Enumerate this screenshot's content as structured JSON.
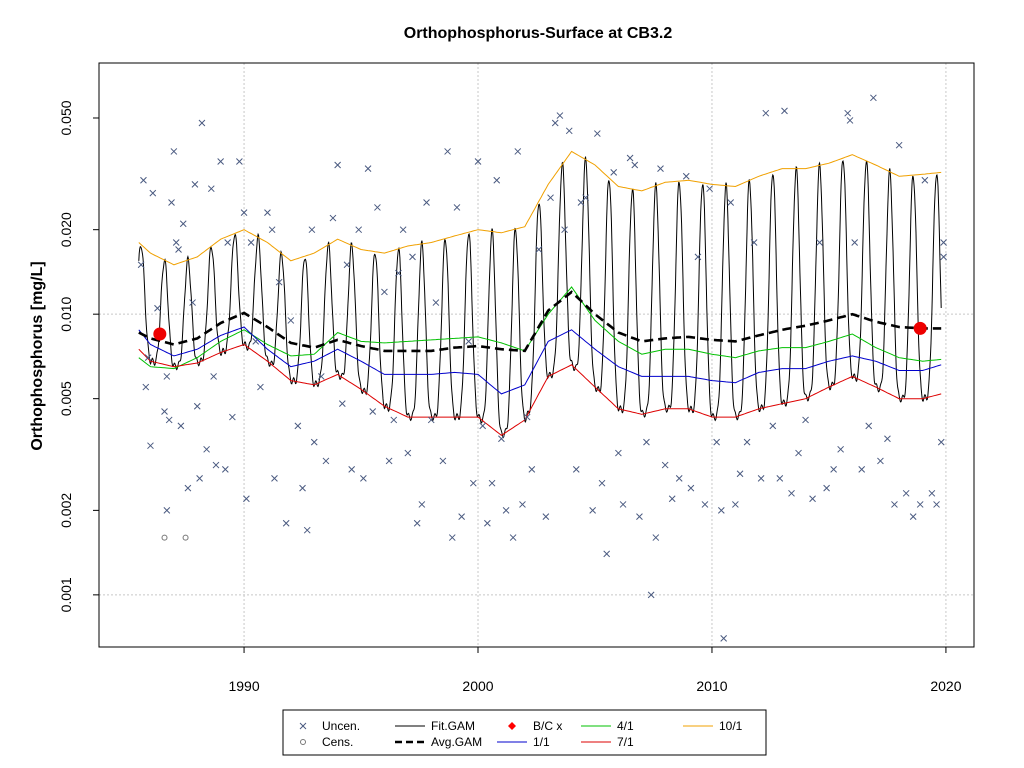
{
  "chart_data": {
    "type": "line",
    "title": "Orthophosphorus-Surface at CB3.2",
    "xlabel": "",
    "ylabel": "Orthophosphorus [mg/L]",
    "y_scale": "log",
    "xlim": [
      1983.8,
      2021.2
    ],
    "ylim": [
      0.000652,
      0.0785
    ],
    "x_ticks": [
      1990,
      2000,
      2010,
      2020
    ],
    "x_tick_labels": [
      "1990",
      "2000",
      "2010",
      "2020"
    ],
    "y_ticks": [
      0.001,
      0.002,
      0.005,
      0.01,
      0.02,
      0.05
    ],
    "y_tick_labels": [
      "0.001",
      "0.002",
      "0.005",
      "0.010",
      "0.020",
      "0.050"
    ],
    "grid": true,
    "legend_position": "bottom-outside",
    "legend": [
      {
        "label": "Uncen.",
        "kind": "cross",
        "color": "#4a5a80"
      },
      {
        "label": "Cens.",
        "kind": "circle",
        "color": "#777777"
      },
      {
        "label": "Fit.GAM",
        "kind": "line",
        "color": "#000000"
      },
      {
        "label": "Avg.GAM",
        "kind": "dashed",
        "color": "#000000"
      },
      {
        "label": "B/C x",
        "kind": "diamond",
        "color": "#ff0000"
      },
      {
        "label": "1/1",
        "kind": "line",
        "color": "#0000cc"
      },
      {
        "label": "4/1",
        "kind": "line",
        "color": "#00c000"
      },
      {
        "label": "7/1",
        "kind": "line",
        "color": "#dd0000"
      },
      {
        "label": "10/1",
        "kind": "line",
        "color": "#f0a000"
      }
    ],
    "baseline_x": [
      1985.5,
      1986,
      1987,
      1988,
      1989,
      1990,
      1991,
      1992,
      1993,
      1994,
      1995,
      1996,
      1997,
      1998,
      1999,
      2000,
      2001,
      2002,
      2003,
      2004,
      2005,
      2006,
      2007,
      2008,
      2009,
      2010,
      2011,
      2012,
      2013,
      2014,
      2015,
      2016,
      2017,
      2018,
      2019,
      2019.8
    ],
    "avg_gam": [
      0.0086,
      0.0082,
      0.0078,
      0.0082,
      0.0093,
      0.0101,
      0.009,
      0.0079,
      0.0076,
      0.0081,
      0.0077,
      0.0074,
      0.0074,
      0.0074,
      0.0076,
      0.0077,
      0.0075,
      0.0074,
      0.0103,
      0.012,
      0.01,
      0.0086,
      0.008,
      0.0082,
      0.0083,
      0.0081,
      0.008,
      0.0084,
      0.0088,
      0.0091,
      0.0095,
      0.01,
      0.0094,
      0.009,
      0.0089,
      0.0089
    ],
    "series": [
      {
        "name": "10/1",
        "color": "#f0a000",
        "values": [
          0.018,
          0.0165,
          0.015,
          0.016,
          0.0185,
          0.02,
          0.018,
          0.0155,
          0.0165,
          0.0185,
          0.017,
          0.0165,
          0.0175,
          0.018,
          0.019,
          0.02,
          0.0195,
          0.0205,
          0.029,
          0.038,
          0.034,
          0.0285,
          0.0275,
          0.0295,
          0.03,
          0.029,
          0.0285,
          0.031,
          0.033,
          0.033,
          0.0345,
          0.037,
          0.034,
          0.031,
          0.0315,
          0.032
        ]
      },
      {
        "name": "4/1",
        "color": "#00c000",
        "values": [
          0.007,
          0.0065,
          0.0064,
          0.007,
          0.008,
          0.0088,
          0.0078,
          0.0071,
          0.0072,
          0.0086,
          0.008,
          0.0079,
          0.008,
          0.0081,
          0.0082,
          0.0083,
          0.0079,
          0.0074,
          0.01,
          0.0125,
          0.0095,
          0.008,
          0.0072,
          0.0075,
          0.0075,
          0.0072,
          0.007,
          0.0074,
          0.0076,
          0.0076,
          0.008,
          0.0085,
          0.0076,
          0.007,
          0.0068,
          0.0069
        ]
      },
      {
        "name": "1/1",
        "color": "#0000cc",
        "values": [
          0.0088,
          0.0078,
          0.0071,
          0.0075,
          0.0084,
          0.009,
          0.0075,
          0.0065,
          0.0068,
          0.0075,
          0.0068,
          0.0061,
          0.0061,
          0.0061,
          0.0062,
          0.0061,
          0.0052,
          0.0056,
          0.008,
          0.0088,
          0.0075,
          0.0065,
          0.006,
          0.006,
          0.006,
          0.0058,
          0.0057,
          0.0062,
          0.0064,
          0.0064,
          0.0068,
          0.0071,
          0.0068,
          0.0063,
          0.0063,
          0.0066
        ]
      },
      {
        "name": "7/1",
        "color": "#dd0000",
        "values": [
          0.0075,
          0.0068,
          0.0065,
          0.0067,
          0.0073,
          0.0078,
          0.0068,
          0.0058,
          0.0056,
          0.0061,
          0.0054,
          0.0047,
          0.0043,
          0.0043,
          0.0043,
          0.0043,
          0.0037,
          0.0042,
          0.006,
          0.0066,
          0.0055,
          0.0046,
          0.0044,
          0.0046,
          0.0046,
          0.0043,
          0.0043,
          0.0046,
          0.0048,
          0.005,
          0.0055,
          0.006,
          0.0055,
          0.005,
          0.005,
          0.0052
        ]
      }
    ],
    "fit_gam": {
      "start": 1985.5,
      "end": 2019.8,
      "color": "#000000",
      "description_from_chart": "seasonal oscillation between 7/1 and 10/1 curves"
    },
    "bc_points": [
      {
        "x": 1986.4,
        "y": 0.0085
      },
      {
        "x": 2018.9,
        "y": 0.0089
      }
    ],
    "uncensored_points": [
      [
        1985.6,
        0.015
      ],
      [
        1985.7,
        0.03
      ],
      [
        1985.8,
        0.0055
      ],
      [
        1985.9,
        0.007
      ],
      [
        1986.0,
        0.0034
      ],
      [
        1986.1,
        0.027
      ],
      [
        1986.3,
        0.0105
      ],
      [
        1986.6,
        0.0045
      ],
      [
        1986.7,
        0.006
      ],
      [
        1986.7,
        0.002
      ],
      [
        1986.8,
        0.0042
      ],
      [
        1986.9,
        0.025
      ],
      [
        1987.0,
        0.038
      ],
      [
        1987.1,
        0.018
      ],
      [
        1987.2,
        0.017
      ],
      [
        1987.3,
        0.004
      ],
      [
        1987.4,
        0.021
      ],
      [
        1987.6,
        0.0024
      ],
      [
        1987.8,
        0.011
      ],
      [
        1987.9,
        0.029
      ],
      [
        1988.0,
        0.0047
      ],
      [
        1988.1,
        0.0026
      ],
      [
        1988.2,
        0.048
      ],
      [
        1988.4,
        0.0033
      ],
      [
        1988.6,
        0.028
      ],
      [
        1988.7,
        0.006
      ],
      [
        1988.8,
        0.0029
      ],
      [
        1989.0,
        0.035
      ],
      [
        1989.2,
        0.0028
      ],
      [
        1989.3,
        0.018
      ],
      [
        1989.5,
        0.0043
      ],
      [
        1989.8,
        0.035
      ],
      [
        1990.0,
        0.023
      ],
      [
        1990.1,
        0.0022
      ],
      [
        1990.3,
        0.018
      ],
      [
        1990.5,
        0.008
      ],
      [
        1990.7,
        0.0055
      ],
      [
        1991.0,
        0.023
      ],
      [
        1991.2,
        0.02
      ],
      [
        1991.3,
        0.0026
      ],
      [
        1991.5,
        0.013
      ],
      [
        1991.8,
        0.0018
      ],
      [
        1992.0,
        0.0095
      ],
      [
        1992.3,
        0.004
      ],
      [
        1992.5,
        0.0024
      ],
      [
        1992.7,
        0.0017
      ],
      [
        1992.9,
        0.02
      ],
      [
        1993.0,
        0.0035
      ],
      [
        1993.3,
        0.006
      ],
      [
        1993.5,
        0.003
      ],
      [
        1993.8,
        0.022
      ],
      [
        1994.0,
        0.034
      ],
      [
        1994.2,
        0.0048
      ],
      [
        1994.4,
        0.015
      ],
      [
        1994.6,
        0.0028
      ],
      [
        1994.9,
        0.02
      ],
      [
        1995.1,
        0.0026
      ],
      [
        1995.3,
        0.033
      ],
      [
        1995.5,
        0.0045
      ],
      [
        1995.7,
        0.024
      ],
      [
        1996.0,
        0.012
      ],
      [
        1996.2,
        0.003
      ],
      [
        1996.4,
        0.0042
      ],
      [
        1996.6,
        0.014
      ],
      [
        1996.8,
        0.02
      ],
      [
        1997.0,
        0.0032
      ],
      [
        1997.2,
        0.016
      ],
      [
        1997.4,
        0.0018
      ],
      [
        1997.6,
        0.0021
      ],
      [
        1997.8,
        0.025
      ],
      [
        1998.0,
        0.0042
      ],
      [
        1998.2,
        0.011
      ],
      [
        1998.5,
        0.003
      ],
      [
        1998.7,
        0.038
      ],
      [
        1998.9,
        0.0016
      ],
      [
        1999.1,
        0.024
      ],
      [
        1999.3,
        0.0019
      ],
      [
        1999.6,
        0.008
      ],
      [
        1999.8,
        0.0025
      ],
      [
        2000.0,
        0.035
      ],
      [
        2000.2,
        0.004
      ],
      [
        2000.4,
        0.0018
      ],
      [
        2000.6,
        0.0025
      ],
      [
        2000.8,
        0.03
      ],
      [
        2001.0,
        0.0036
      ],
      [
        2001.2,
        0.002
      ],
      [
        2001.5,
        0.0016
      ],
      [
        2001.7,
        0.038
      ],
      [
        2001.9,
        0.0021
      ],
      [
        2002.1,
        0.0043
      ],
      [
        2002.3,
        0.0028
      ],
      [
        2002.6,
        0.017
      ],
      [
        2002.9,
        0.0019
      ],
      [
        2003.1,
        0.026
      ],
      [
        2003.3,
        0.048
      ],
      [
        2003.5,
        0.051
      ],
      [
        2003.7,
        0.02
      ],
      [
        2003.9,
        0.045
      ],
      [
        2004.2,
        0.0028
      ],
      [
        2004.4,
        0.025
      ],
      [
        2004.6,
        0.026
      ],
      [
        2004.9,
        0.002
      ],
      [
        2005.1,
        0.044
      ],
      [
        2005.3,
        0.0025
      ],
      [
        2005.5,
        0.0014
      ],
      [
        2005.8,
        0.032
      ],
      [
        2006.0,
        0.0032
      ],
      [
        2006.2,
        0.0021
      ],
      [
        2006.5,
        0.036
      ],
      [
        2006.7,
        0.034
      ],
      [
        2006.9,
        0.0019
      ],
      [
        2007.2,
        0.0035
      ],
      [
        2007.4,
        0.001
      ],
      [
        2007.6,
        0.0016
      ],
      [
        2007.8,
        0.033
      ],
      [
        2008.0,
        0.0029
      ],
      [
        2008.3,
        0.0022
      ],
      [
        2008.6,
        0.0026
      ],
      [
        2008.9,
        0.031
      ],
      [
        2009.1,
        0.0024
      ],
      [
        2009.4,
        0.016
      ],
      [
        2009.7,
        0.0021
      ],
      [
        2009.9,
        0.028
      ],
      [
        2010.2,
        0.0035
      ],
      [
        2010.4,
        0.002
      ],
      [
        2010.5,
        0.0007
      ],
      [
        2010.8,
        0.025
      ],
      [
        2011.0,
        0.0021
      ],
      [
        2011.2,
        0.0027
      ],
      [
        2011.5,
        0.0035
      ],
      [
        2011.8,
        0.018
      ],
      [
        2012.1,
        0.0026
      ],
      [
        2012.3,
        0.052
      ],
      [
        2012.6,
        0.004
      ],
      [
        2012.9,
        0.0026
      ],
      [
        2013.1,
        0.053
      ],
      [
        2013.4,
        0.0023
      ],
      [
        2013.7,
        0.0032
      ],
      [
        2014.0,
        0.0042
      ],
      [
        2014.3,
        0.0022
      ],
      [
        2014.6,
        0.018
      ],
      [
        2014.9,
        0.0024
      ],
      [
        2015.2,
        0.0028
      ],
      [
        2015.5,
        0.0033
      ],
      [
        2015.8,
        0.052
      ],
      [
        2015.9,
        0.049
      ],
      [
        2016.1,
        0.018
      ],
      [
        2016.4,
        0.0028
      ],
      [
        2016.7,
        0.004
      ],
      [
        2016.9,
        0.059
      ],
      [
        2017.2,
        0.003
      ],
      [
        2017.5,
        0.0036
      ],
      [
        2017.8,
        0.0021
      ],
      [
        2018.0,
        0.04
      ],
      [
        2018.3,
        0.0023
      ],
      [
        2018.6,
        0.0019
      ],
      [
        2018.9,
        0.0021
      ],
      [
        2019.1,
        0.03
      ],
      [
        2019.4,
        0.0023
      ],
      [
        2019.6,
        0.0021
      ],
      [
        2019.8,
        0.0035
      ],
      [
        2019.9,
        0.018
      ],
      [
        2019.9,
        0.016
      ]
    ],
    "censored_points": [
      [
        1986.6,
        0.0016
      ],
      [
        1987.5,
        0.0016
      ]
    ]
  }
}
